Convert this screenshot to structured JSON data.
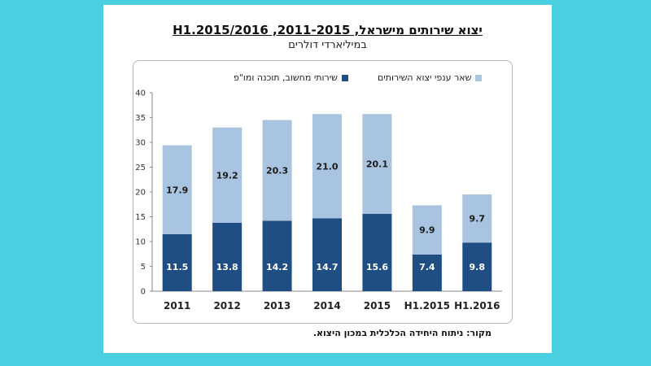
{
  "chart_data": {
    "type": "bar",
    "stacked": true,
    "title": "יצוא שירותים מישראל, 2011-2015, H1.2015/2016",
    "subtitle": "במיליארדי דולרים",
    "categories": [
      "2011",
      "2012",
      "2013",
      "2014",
      "2015",
      "H1.2015",
      "H1.2016"
    ],
    "series": [
      {
        "name": "שירותי מחשוב, תוכנה ומו\"פ",
        "color": "#1f4e84",
        "values": [
          11.5,
          13.8,
          14.2,
          14.7,
          15.6,
          7.4,
          9.8
        ]
      },
      {
        "name": "שאר ענפי יצוא השירותים",
        "color": "#a9c4e0",
        "values": [
          17.9,
          19.2,
          20.3,
          21.0,
          20.1,
          9.9,
          9.7
        ]
      }
    ],
    "ylim": [
      0,
      40
    ],
    "yticks": [
      0,
      5,
      10,
      15,
      20,
      25,
      30,
      35,
      40
    ],
    "grid": false,
    "legend_position": "top",
    "source": "מקור: ניתוח היחידה הכלכלית במכון היצוא."
  }
}
